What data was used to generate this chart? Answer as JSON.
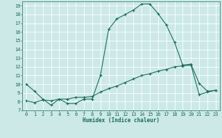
{
  "title": "",
  "xlabel": "Humidex (Indice chaleur)",
  "ylabel": "",
  "bg_color": "#cce9e8",
  "line_color": "#1a6b5a",
  "grid_color": "#ffffff",
  "xlim": [
    -0.5,
    23.5
  ],
  "ylim": [
    7,
    19.5
  ],
  "yticks": [
    7,
    8,
    9,
    10,
    11,
    12,
    13,
    14,
    15,
    16,
    17,
    18,
    19
  ],
  "xticks": [
    0,
    1,
    2,
    3,
    4,
    5,
    6,
    7,
    8,
    9,
    10,
    11,
    12,
    13,
    14,
    15,
    16,
    17,
    18,
    19,
    20,
    21,
    22,
    23
  ],
  "curve1_x": [
    0,
    1,
    2,
    3,
    4,
    5,
    6,
    7,
    8,
    9,
    10,
    11,
    12,
    13,
    14,
    15,
    16,
    17,
    18,
    19,
    20,
    21,
    22,
    23
  ],
  "curve1_y": [
    10.0,
    9.2,
    8.3,
    7.6,
    8.3,
    7.8,
    7.8,
    8.3,
    8.3,
    11.0,
    16.3,
    17.5,
    18.0,
    18.5,
    19.2,
    19.2,
    18.1,
    16.8,
    14.8,
    12.2,
    12.3,
    10.1,
    9.2,
    9.3
  ],
  "curve2_x": [
    0,
    1,
    2,
    3,
    4,
    5,
    6,
    7,
    8,
    9,
    10,
    11,
    12,
    13,
    14,
    15,
    16,
    17,
    18,
    19,
    20,
    21,
    22,
    23
  ],
  "curve2_y": [
    8.1,
    7.9,
    8.2,
    8.1,
    8.3,
    8.3,
    8.5,
    8.5,
    8.6,
    9.1,
    9.5,
    9.8,
    10.2,
    10.6,
    11.0,
    11.2,
    11.5,
    11.7,
    12.0,
    12.1,
    12.2,
    8.8,
    9.1,
    9.3
  ],
  "xlabel_fontsize": 5.5,
  "tick_fontsize": 5,
  "linewidth": 0.8,
  "markersize": 3
}
